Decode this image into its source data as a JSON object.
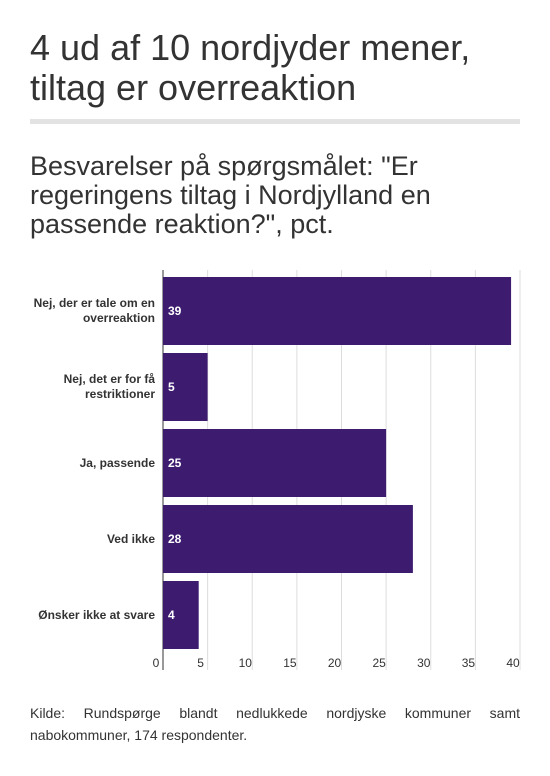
{
  "chart_data": {
    "type": "bar",
    "orientation": "horizontal",
    "title": "4 ud af 10 nordjyder mener, tiltag er overreaktion",
    "subtitle": "Besvarelser på spørgsmålet: \"Er regeringens tiltag i Nordjylland en passende reaktion?\", pct.",
    "categories": [
      "Nej, der er tale om en overreaktion",
      "Nej, det er for få restriktioner",
      "Ja, passende",
      "Ved ikke",
      "Ønsker ikke at svare"
    ],
    "values": [
      39,
      5,
      25,
      28,
      4
    ],
    "color": "#3d1c70",
    "xlim": [
      0,
      40
    ],
    "xticks": [
      0,
      5,
      10,
      15,
      20,
      25,
      30,
      35,
      40
    ],
    "grid": true,
    "source": "Kilde: Rundspørge blandt nedlukkede nordjyske kommuner samt nabokommuner, 174 respondenter."
  }
}
